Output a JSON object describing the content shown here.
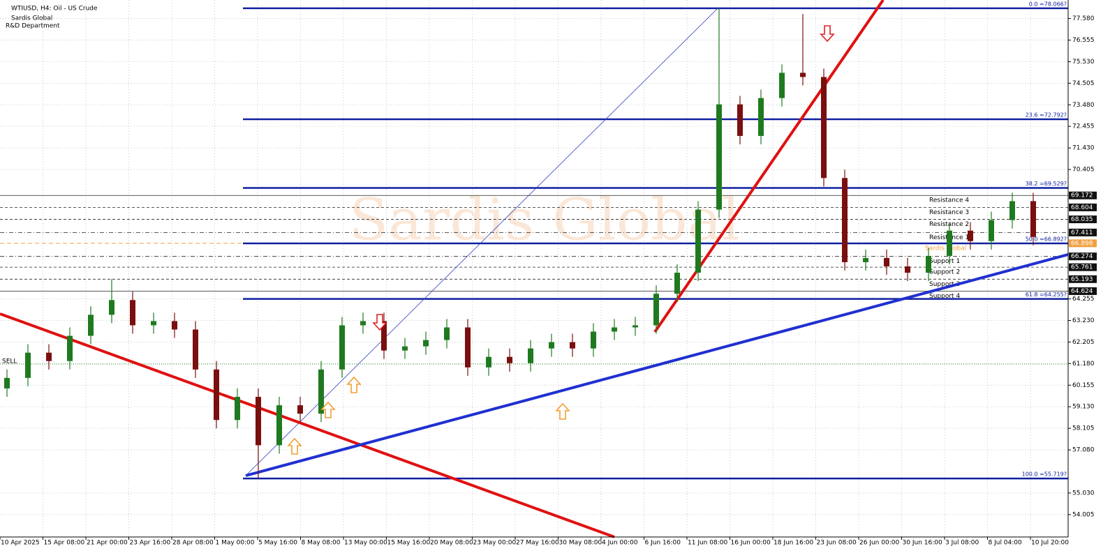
{
  "header": {
    "symbol": "WTIUSD, H4:  Oil - US Crude",
    "company": "Sardis Global",
    "department": "R&D Department"
  },
  "watermark": "Sardis Global",
  "chart_data": {
    "type": "candlestick",
    "up_color": "#1f7a1f",
    "down_color": "#7a0f0f",
    "open": [
      60.0,
      60.5,
      61.7,
      61.3,
      62.5,
      63.5,
      64.2,
      63.0,
      63.2,
      62.8,
      60.9,
      58.5,
      59.6,
      57.3,
      59.2,
      58.8,
      60.9,
      63.0,
      63.2,
      61.8,
      62.0,
      62.3,
      62.9,
      61.0,
      61.5,
      61.2,
      61.9,
      62.2,
      61.9,
      62.7,
      62.9,
      63.0,
      64.5,
      65.5,
      68.5,
      73.5,
      72.0,
      73.8,
      75.0,
      74.8,
      70.0,
      66.0,
      66.2,
      65.8,
      65.5,
      66.3,
      67.5,
      67.0,
      68.0,
      68.9
    ],
    "high": [
      60.9,
      62.1,
      62.1,
      62.9,
      63.9,
      65.2,
      64.6,
      63.6,
      63.6,
      63.2,
      61.3,
      60.0,
      60.0,
      59.6,
      59.6,
      61.3,
      63.4,
      63.6,
      63.6,
      62.4,
      62.7,
      63.3,
      63.3,
      61.9,
      61.9,
      62.3,
      62.6,
      62.6,
      63.1,
      63.3,
      63.4,
      64.9,
      65.9,
      68.9,
      78.066,
      73.9,
      74.2,
      75.4,
      77.8,
      75.2,
      70.4,
      66.6,
      66.6,
      66.2,
      66.7,
      67.9,
      67.9,
      68.4,
      69.3,
      69.3
    ],
    "low": [
      59.6,
      60.1,
      60.9,
      60.9,
      62.1,
      63.1,
      62.6,
      62.6,
      62.4,
      60.5,
      58.1,
      58.1,
      55.719,
      56.9,
      58.4,
      58.4,
      60.5,
      62.6,
      61.4,
      61.4,
      61.6,
      61.9,
      60.6,
      60.6,
      60.8,
      60.8,
      61.5,
      61.5,
      61.5,
      62.3,
      62.5,
      62.6,
      64.1,
      65.1,
      68.1,
      71.6,
      71.6,
      73.4,
      74.4,
      69.6,
      65.6,
      65.6,
      65.4,
      65.1,
      65.1,
      65.9,
      66.6,
      66.6,
      67.6,
      66.8
    ],
    "close": [
      60.5,
      61.7,
      61.3,
      62.5,
      63.5,
      64.2,
      63.0,
      63.2,
      62.8,
      60.9,
      58.5,
      59.6,
      57.3,
      59.2,
      58.8,
      60.9,
      63.0,
      63.2,
      61.8,
      62.0,
      62.3,
      62.9,
      61.0,
      61.5,
      61.2,
      61.9,
      62.2,
      61.9,
      62.7,
      62.9,
      63.0,
      64.5,
      65.5,
      68.5,
      73.5,
      72.0,
      73.8,
      75.0,
      74.8,
      70.0,
      66.0,
      66.2,
      65.8,
      65.5,
      66.3,
      67.5,
      67.0,
      68.0,
      68.9,
      67.2
    ],
    "categories": [
      "10 Apr 2025",
      "15 Apr 08:00",
      "21 Apr 00:00",
      "23 Apr 16:00",
      "28 Apr 08:00",
      "1 May 00:00",
      "5 May 16:00",
      "8 May 08:00",
      "13 May 00:00",
      "15 May 16:00",
      "20 May 08:00",
      "23 May 00:00",
      "27 May 16:00",
      "30 May 08:00",
      "4 Jun 00:00",
      "6 Jun 16:00",
      "11 Jun 08:00",
      "16 Jun 00:00",
      "18 Jun 16:00",
      "23 Jun 08:00",
      "26 Jun 00:00",
      "30 Jun 16:00",
      "3 Jul 08:00",
      "8 Jul 04:00",
      "10 Jul 20:00"
    ],
    "ylim": [
      52.94,
      78.46
    ],
    "yticks": [
      {
        "value": 77.58,
        "label": "77.580"
      },
      76.555,
      {
        "value": 75.53,
        "label": "75.530"
      },
      74.505,
      {
        "value": 73.48,
        "label": "73.480"
      },
      72.455,
      {
        "value": 71.43,
        "label": "71.430"
      },
      70.405,
      64.255,
      {
        "value": 63.23,
        "label": "63.230"
      },
      62.205,
      {
        "value": 61.18,
        "label": "61.180"
      },
      60.155,
      {
        "value": 59.13,
        "label": "59.130"
      },
      58.105,
      {
        "value": 57.08,
        "label": "57.080"
      },
      {
        "value": 55.03,
        "label": "55.030"
      },
      54.005
    ],
    "grid": true,
    "levels": [
      {
        "name": "Resistance 4",
        "value": 69.172,
        "style": "solid"
      },
      {
        "name": "Resistance 3",
        "value": 68.604,
        "style": "dashed"
      },
      {
        "name": "Resistance 2",
        "value": 68.035,
        "style": "dashed"
      },
      {
        "name": "Resistance 1",
        "value": 67.411,
        "style": "dashdot"
      },
      {
        "name": "Support 1",
        "value": 66.274,
        "style": "dashdot"
      },
      {
        "name": "Support 2",
        "value": 65.761,
        "style": "dashed"
      },
      {
        "name": "Support 3",
        "value": 65.193,
        "style": "dashed"
      },
      {
        "name": "Support 4",
        "value": 64.624,
        "style": "solid"
      }
    ],
    "current": {
      "name": "Sardis Global",
      "value": 66.898,
      "color": "#f0a040"
    },
    "fibonacci": [
      {
        "label": "0.0 =78.066?",
        "value": 78.066
      },
      {
        "label": "23.6 =72.792?",
        "value": 72.792
      },
      {
        "label": "38.2 =69.529?",
        "value": 69.529
      },
      {
        "label": "50.0 =66.892?",
        "value": 66.892
      },
      {
        "label": "61.8 =64.255?",
        "value": 64.255
      },
      {
        "label": "100.0 =55.719?",
        "value": 55.719
      }
    ],
    "fib_color": "#1020a0",
    "signal": {
      "name": "SELL",
      "value": 61.16,
      "color": "#2a9a2a"
    }
  }
}
